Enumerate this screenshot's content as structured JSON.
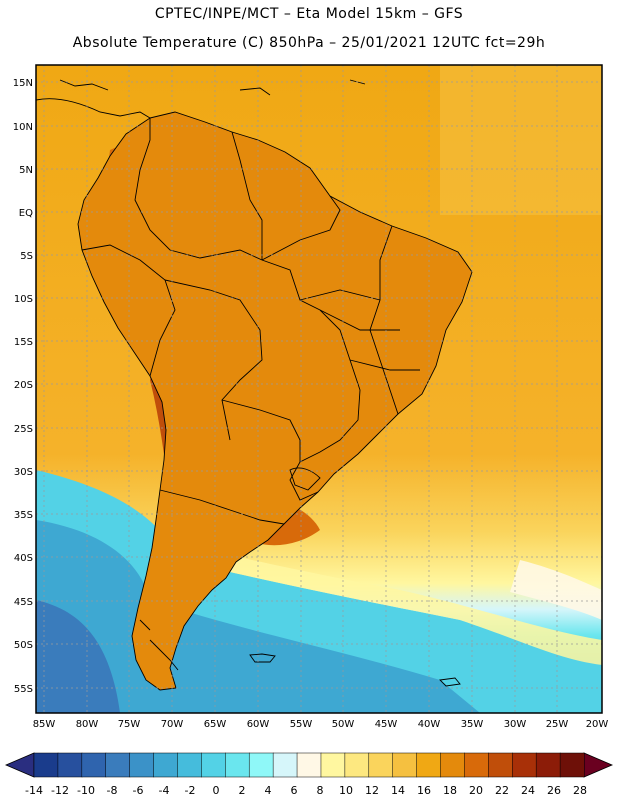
{
  "header": {
    "line1": "CPTEC/INPE/MCT –  Eta Model 15km – GFS",
    "line2": "Absolute Temperature (C) 850hPa – 25/01/2021 12UTC fct=29h"
  },
  "lat_labels": [
    "15N",
    "10N",
    "5N",
    "EQ",
    "5S",
    "10S",
    "15S",
    "20S",
    "25S",
    "30S",
    "35S",
    "40S",
    "45S",
    "50S",
    "55S"
  ],
  "lon_labels": [
    "85W",
    "80W",
    "75W",
    "70W",
    "65W",
    "60W",
    "55W",
    "50W",
    "45W",
    "40W",
    "35W",
    "30W",
    "25W",
    "20W"
  ],
  "colorbar": {
    "labels": [
      "-14",
      "-12",
      "-10",
      "-8",
      "-6",
      "-4",
      "-2",
      "0",
      "2",
      "4",
      "6",
      "8",
      "10",
      "12",
      "14",
      "16",
      "18",
      "20",
      "22",
      "24",
      "26",
      "28"
    ],
    "colors": [
      "#1a3c8c",
      "#27509e",
      "#2f64ae",
      "#3a7cbc",
      "#3b92c8",
      "#3ea8d2",
      "#45bcdc",
      "#53d2e6",
      "#6ae6ee",
      "#8ff8f8",
      "#d6f6fa",
      "#fff8e6",
      "#fff7a0",
      "#fde880",
      "#fad45c",
      "#f5c040",
      "#f0a814",
      "#e48a0c",
      "#d86a0a",
      "#c04e0a",
      "#a83008",
      "#8c1c08",
      "#6e1008"
    ],
    "min_color": "#2a2e80",
    "max_color": "#6a0020"
  }
}
